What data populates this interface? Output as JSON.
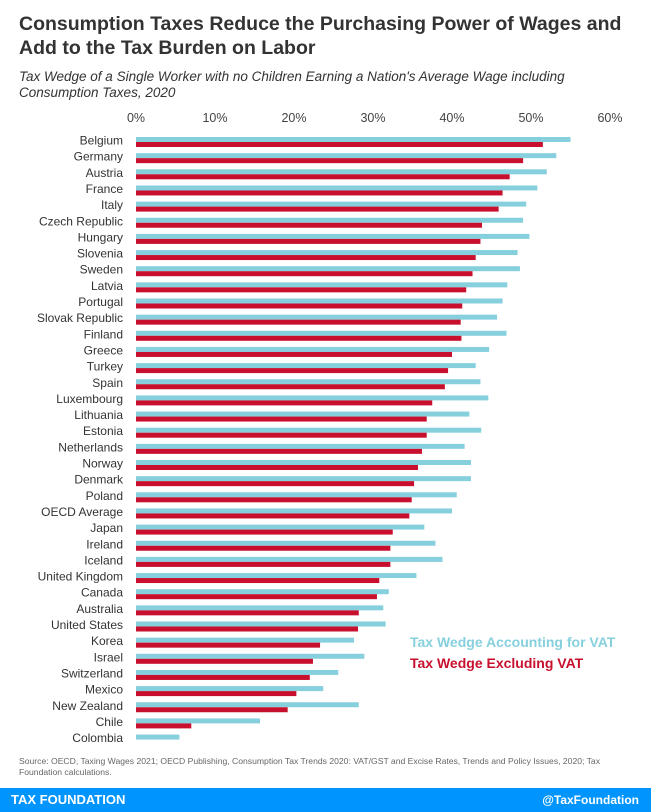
{
  "title": "Consumption Taxes Reduce the Purchasing Power of Wages and Add to the Tax Burden on Labor",
  "subtitle": "Tax Wedge of a Single Worker with no Children Earning a Nation's Average Wage including Consumption Taxes, 2020",
  "source": "Source: OECD, Taxing Wages 2021; OECD Publishing, Consumption Tax Trends 2020: VAT/GST and Excise Rates, Trends and Policy Issues, 2020; Tax Foundation calculations.",
  "footer": {
    "brand": "TAX FOUNDATION",
    "handle": "@TaxFoundation",
    "bar_color": "#0094ff"
  },
  "chart_data": {
    "type": "bar",
    "orientation": "horizontal",
    "xlim": [
      0,
      60
    ],
    "xticks": [
      "0%",
      "10%",
      "20%",
      "30%",
      "40%",
      "50%",
      "60%"
    ],
    "xtick_values": [
      0,
      10,
      20,
      30,
      40,
      50,
      60
    ],
    "xaxis_position": "top",
    "grid": false,
    "legend_position": "bottom-right",
    "categories": [
      "Belgium",
      "Germany",
      "Austria",
      "France",
      "Italy",
      "Czech Republic",
      "Hungary",
      "Slovenia",
      "Sweden",
      "Latvia",
      "Portugal",
      "Slovak Republic",
      "Finland",
      "Greece",
      "Turkey",
      "Spain",
      "Luxembourg",
      "Lithuania",
      "Estonia",
      "Netherlands",
      "Norway",
      "Denmark",
      "Poland",
      "OECD Average",
      "Japan",
      "Ireland",
      "Iceland",
      "United Kingdom",
      "Canada",
      "Australia",
      "United States",
      "Korea",
      "Israel",
      "Switzerland",
      "Mexico",
      "New Zealand",
      "Chile",
      "Colombia"
    ],
    "series": [
      {
        "name": "Tax Wedge Accounting for VAT",
        "color": "#86d0de",
        "values": [
          55.0,
          53.2,
          52.0,
          50.8,
          49.4,
          49.0,
          49.8,
          48.3,
          48.6,
          47.0,
          46.4,
          45.7,
          46.9,
          44.7,
          43.0,
          43.6,
          44.6,
          42.2,
          43.7,
          41.6,
          42.4,
          42.4,
          40.6,
          40.0,
          36.5,
          37.9,
          38.8,
          35.5,
          32.0,
          31.3,
          31.6,
          27.6,
          28.9,
          25.6,
          23.7,
          28.2,
          15.7,
          5.5
        ]
      },
      {
        "name": "Tax Wedge Excluding VAT",
        "color": "#c8102e",
        "values": [
          51.5,
          49.0,
          47.3,
          46.4,
          45.9,
          43.8,
          43.6,
          43.0,
          42.6,
          41.8,
          41.3,
          41.1,
          41.2,
          40.0,
          39.5,
          39.1,
          37.5,
          36.8,
          36.8,
          36.2,
          35.7,
          35.2,
          34.9,
          34.6,
          32.5,
          32.2,
          32.2,
          30.8,
          30.5,
          28.2,
          28.1,
          23.3,
          22.4,
          22.0,
          20.3,
          19.2,
          7.0,
          0.0
        ]
      }
    ]
  }
}
